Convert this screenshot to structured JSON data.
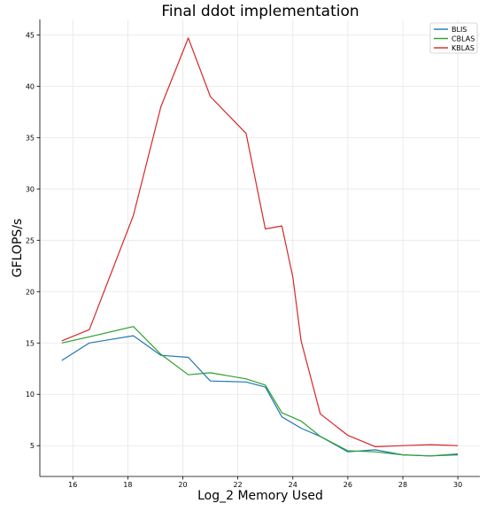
{
  "chart_data": {
    "type": "line",
    "title": "Final ddot implementation",
    "xlabel": "Log_2 Memory Used",
    "ylabel": "GFLOPS/s",
    "xlim": [
      14.8,
      30.8
    ],
    "ylim": [
      2,
      46.5
    ],
    "xticks": [
      16,
      18,
      20,
      22,
      24,
      26,
      28,
      30
    ],
    "yticks": [
      5,
      10,
      15,
      20,
      25,
      30,
      35,
      40,
      45
    ],
    "grid": true,
    "legend_position": "top-right",
    "series": [
      {
        "name": "BLIS",
        "color": "#1f77b4",
        "x": [
          15.6,
          16.6,
          18.2,
          19.2,
          20.2,
          21.0,
          22.3,
          23.0,
          23.6,
          24.3,
          25.0,
          26.0,
          27.0,
          28.0,
          29.0,
          30.0
        ],
        "y": [
          13.3,
          15.0,
          15.7,
          13.8,
          13.6,
          11.3,
          11.2,
          10.7,
          7.8,
          6.7,
          5.9,
          4.4,
          4.6,
          4.1,
          4.0,
          4.1
        ]
      },
      {
        "name": "CBLAS",
        "color": "#2ca02c",
        "x": [
          15.6,
          16.6,
          18.2,
          19.2,
          20.2,
          21.0,
          22.3,
          23.0,
          23.6,
          24.3,
          25.0,
          26.0,
          27.0,
          28.0,
          29.0,
          30.0
        ],
        "y": [
          15.0,
          15.6,
          16.6,
          13.9,
          11.9,
          12.1,
          11.5,
          10.9,
          8.2,
          7.4,
          5.9,
          4.5,
          4.4,
          4.1,
          4.0,
          4.2
        ]
      },
      {
        "name": "KBLAS",
        "color": "#d62728",
        "x": [
          15.6,
          16.6,
          18.2,
          19.2,
          20.2,
          21.0,
          22.3,
          23.0,
          23.6,
          24.0,
          24.3,
          25.0,
          26.0,
          27.0,
          28.0,
          29.0,
          30.0
        ],
        "y": [
          15.2,
          16.3,
          27.4,
          38.0,
          44.7,
          39.0,
          35.4,
          26.1,
          26.4,
          21.4,
          15.2,
          8.1,
          6.0,
          4.9,
          5.0,
          5.1,
          5.0
        ]
      }
    ]
  }
}
